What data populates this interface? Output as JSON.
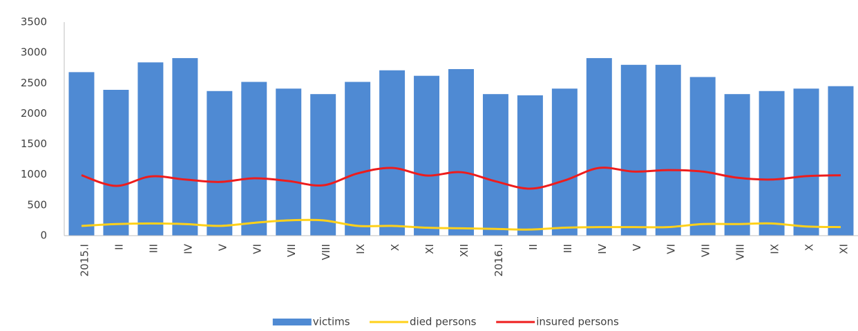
{
  "chart_data": {
    "type": "bar",
    "categories": [
      "2015.I",
      "II",
      "III",
      "IV",
      "V",
      "VI",
      "VII",
      "VIII",
      "IX",
      "X",
      "XI",
      "XII",
      "2016.I",
      "II",
      "III",
      "IV",
      "V",
      "VI",
      "VII",
      "VIII",
      "IX",
      "X",
      "XI"
    ],
    "series": [
      {
        "name": "victims",
        "type": "bar",
        "color": "#4f8ad3",
        "values": [
          2680,
          2390,
          2840,
          2910,
          2370,
          2520,
          2410,
          2320,
          2520,
          2710,
          2620,
          2730,
          2320,
          2300,
          2410,
          2910,
          2800,
          2800,
          2600,
          2320,
          2370,
          2410,
          2450
        ]
      },
      {
        "name": "died persons",
        "type": "line",
        "color": "#ffd11a",
        "values": [
          160,
          190,
          200,
          190,
          160,
          210,
          250,
          250,
          160,
          160,
          130,
          120,
          110,
          100,
          130,
          140,
          140,
          140,
          190,
          190,
          200,
          150,
          140
        ]
      },
      {
        "name": "insured persons",
        "type": "line",
        "color": "#ee1c1c",
        "values": [
          990,
          815,
          970,
          920,
          880,
          940,
          895,
          825,
          1020,
          1110,
          985,
          1040,
          890,
          770,
          905,
          1110,
          1050,
          1075,
          1050,
          950,
          920,
          975,
          990
        ]
      }
    ],
    "ylim": [
      0,
      3500
    ],
    "yticks": [
      0,
      500,
      1000,
      1500,
      2000,
      2500,
      3000,
      3500
    ],
    "grid": false,
    "legend": "bottom"
  }
}
